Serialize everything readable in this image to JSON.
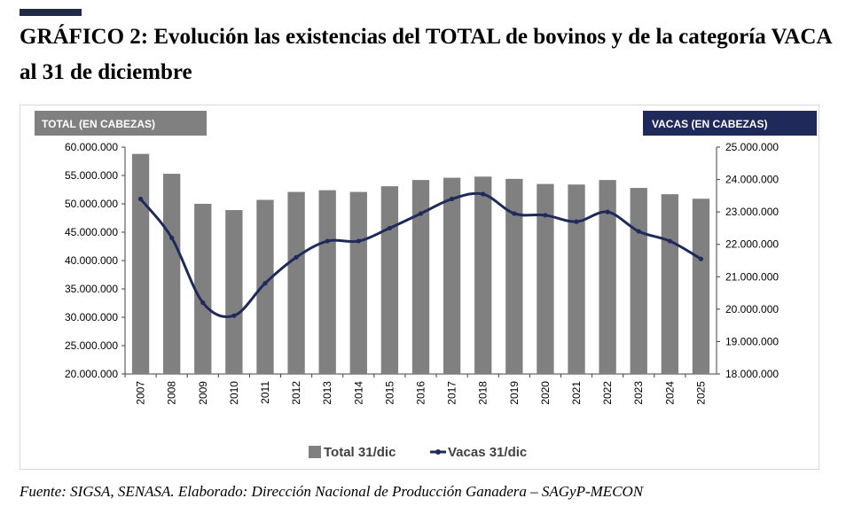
{
  "header": {
    "title": "GRÁFICO 2: Evolución las existencias del TOTAL de bovinos y de la categoría VACA al 31 de diciembre"
  },
  "footer": {
    "source": "Fuente: SIGSA, SENASA. Elaborado: Dirección Nacional de Producción Ganadera – SAGyP-MECON"
  },
  "chart_data": {
    "type": "bar",
    "title": "",
    "ylabel_left": "TOTAL (EN CABEZAS)",
    "ylabel_right": "VACAS (EN CABEZAS)",
    "categories": [
      "2007",
      "2008",
      "2009",
      "2010",
      "2011",
      "2012",
      "2013",
      "2014",
      "2015",
      "2016",
      "2017",
      "2018",
      "2019",
      "2020",
      "2021",
      "2022",
      "2023",
      "2024",
      "2025"
    ],
    "ylim_left": [
      20000000,
      60000000
    ],
    "ylim_right": [
      18000000,
      25000000
    ],
    "yticks_left": [
      "20.000.000",
      "25.000.000",
      "30.000.000",
      "35.000.000",
      "40.000.000",
      "45.000.000",
      "50.000.000",
      "55.000.000",
      "60.000.000"
    ],
    "yticks_right": [
      "18.000.000",
      "19.000.000",
      "20.000.000",
      "21.000.000",
      "22.000.000",
      "23.000.000",
      "24.000.000",
      "25.000.000"
    ],
    "series": [
      {
        "name": "Total 31/dic",
        "type": "bar",
        "axis": "left",
        "color": "#808080",
        "values": [
          58800000,
          55300000,
          50000000,
          48900000,
          50700000,
          52100000,
          52400000,
          52100000,
          53100000,
          54200000,
          54600000,
          54800000,
          54400000,
          53500000,
          53400000,
          54200000,
          52800000,
          51700000,
          50900000
        ]
      },
      {
        "name": "Vacas 31/dic",
        "type": "line",
        "axis": "right",
        "color": "#1f2a5a",
        "values": [
          23400000,
          22200000,
          20200000,
          19800000,
          20800000,
          21600000,
          22100000,
          22100000,
          22500000,
          22950000,
          23400000,
          23550000,
          22950000,
          22900000,
          22700000,
          23000000,
          22400000,
          22100000,
          21550000
        ]
      }
    ],
    "legend": "bottom",
    "grid": false
  }
}
